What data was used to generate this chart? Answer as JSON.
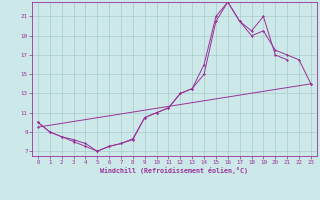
{
  "xlabel": "Windchill (Refroidissement éolien,°C)",
  "bg_color": "#cce8e8",
  "line_color": "#993399",
  "grid_color": "#aacccc",
  "xlim": [
    -0.5,
    23.5
  ],
  "ylim": [
    6.5,
    22.5
  ],
  "xticks": [
    0,
    1,
    2,
    3,
    4,
    5,
    6,
    7,
    8,
    9,
    10,
    11,
    12,
    13,
    14,
    15,
    16,
    17,
    18,
    19,
    20,
    21,
    22,
    23
  ],
  "yticks": [
    7,
    9,
    11,
    13,
    15,
    17,
    19,
    21
  ],
  "line1_x": [
    0,
    1,
    2,
    3,
    4,
    5,
    6,
    7,
    8,
    9,
    10,
    11,
    12,
    13,
    14,
    15,
    16,
    17,
    18,
    19,
    20,
    21
  ],
  "line1_y": [
    10.0,
    9.0,
    8.5,
    8.0,
    7.5,
    7.0,
    7.5,
    7.8,
    8.2,
    10.5,
    11.0,
    11.5,
    13.0,
    13.5,
    16.0,
    21.0,
    22.5,
    20.5,
    19.5,
    21.0,
    17.0,
    16.5
  ],
  "line2_x": [
    0,
    1,
    2,
    3,
    4,
    5,
    6,
    7,
    8,
    9,
    10,
    11,
    12,
    13,
    14,
    15,
    16,
    17,
    18,
    19,
    20,
    21,
    22,
    23
  ],
  "line2_y": [
    10.0,
    9.0,
    8.5,
    8.2,
    7.8,
    7.0,
    7.5,
    7.8,
    8.3,
    10.5,
    11.0,
    11.5,
    13.0,
    13.5,
    15.0,
    20.5,
    22.5,
    20.5,
    19.0,
    19.5,
    17.5,
    17.0,
    16.5,
    14.0
  ],
  "line3_x": [
    0,
    23
  ],
  "line3_y": [
    9.5,
    14.0
  ],
  "tick_fontsize": 4.2,
  "xlabel_fontsize": 4.8
}
